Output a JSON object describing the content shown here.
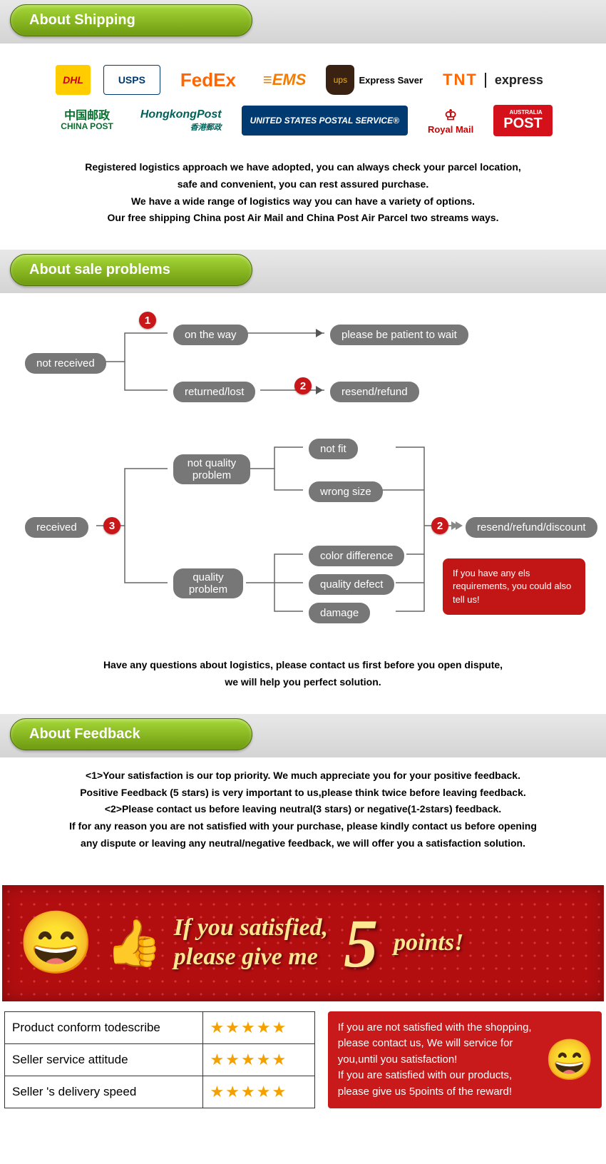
{
  "sections": {
    "shipping_title": "About Shipping",
    "problems_title": "About sale problems",
    "feedback_title": "About Feedback"
  },
  "logos": {
    "dhl": "DHL",
    "usps_short": "USPS",
    "fedex1": "Fed",
    "fedex2": "Ex",
    "ems": "≡EMS",
    "ups": "ups",
    "express_saver": "Express Saver",
    "tnt": "TNT",
    "tnt_express": "express",
    "chinapost_cn": "中国邮政",
    "chinapost_en": "CHINA POST",
    "hongkongpost": "HongkongPost",
    "hongkongpost_cn": "香港郵政",
    "usps_full": "UNITED STATES POSTAL SERVICE®",
    "royalmail": "Royal Mail",
    "auspost": "POST",
    "auspost_sub": "AUSTRALIA"
  },
  "shipping_text": {
    "l1": "Registered logistics approach we have adopted, you can always check your parcel location,",
    "l2": "safe and convenient, you can rest assured purchase.",
    "l3": "We have a wide range of logistics way you can have a variety of options.",
    "l4": "Our free shipping China post Air Mail and China Post Air Parcel two streams ways."
  },
  "flow": {
    "not_received": "not received",
    "received": "received",
    "on_the_way": "on the way",
    "returned_lost": "returned/lost",
    "please_wait": "please be patient to wait",
    "resend_refund": "resend/refund",
    "not_quality": "not quality problem",
    "quality": "quality problem",
    "not_fit": "not fit",
    "wrong_size": "wrong size",
    "color_diff": "color difference",
    "quality_defect": "quality defect",
    "damage": "damage",
    "resend_refund_discount": "resend/refund/discount",
    "n1": "1",
    "n2": "2",
    "n3": "3",
    "n2b": "2",
    "callout": "If you have any els requirements, you could also tell us!"
  },
  "problems_footer": {
    "l1": "Have any questions about logistics, please contact us first before you open dispute,",
    "l2": "we will help you perfect solution."
  },
  "feedback_text": {
    "l1": "<1>Your satisfaction is our top priority. We much appreciate you for your positive feedback.",
    "l2": "Positive Feedback (5 stars) is very important to us,please think twice before leaving feedback.",
    "l3": "<2>Please contact us before leaving neutral(3 stars) or negative(1-2stars) feedback.",
    "l4": "If for any reason you are not satisfied with your purchase, please kindly contact us before opening",
    "l5": "any dispute or leaving any neutral/negative feedback, we will offer you a satisfaction solution."
  },
  "banner": {
    "line1": "If you satisfied,",
    "line2": "please give me",
    "five": "5",
    "points": "points!"
  },
  "ratings": {
    "rows": [
      {
        "label": "Product conform todescribe",
        "stars": "★★★★★"
      },
      {
        "label": "Seller service attitude",
        "stars": "★★★★★"
      },
      {
        "label": "Seller 's delivery speed",
        "stars": "★★★★★"
      }
    ]
  },
  "red_note": {
    "t": "If you are not satisfied with the shopping, please contact us, We will service for you,until you satisfaction!\nIf you are satisfied with our products, please give us 5points of the reward!"
  },
  "colors": {
    "pill_green_top": "#a6d838",
    "pill_green_bot": "#6e9a10",
    "badge_red": "#c91618",
    "node_gray": "#777777",
    "banner_red": "#b20e10",
    "star_gold": "#f4a100"
  }
}
